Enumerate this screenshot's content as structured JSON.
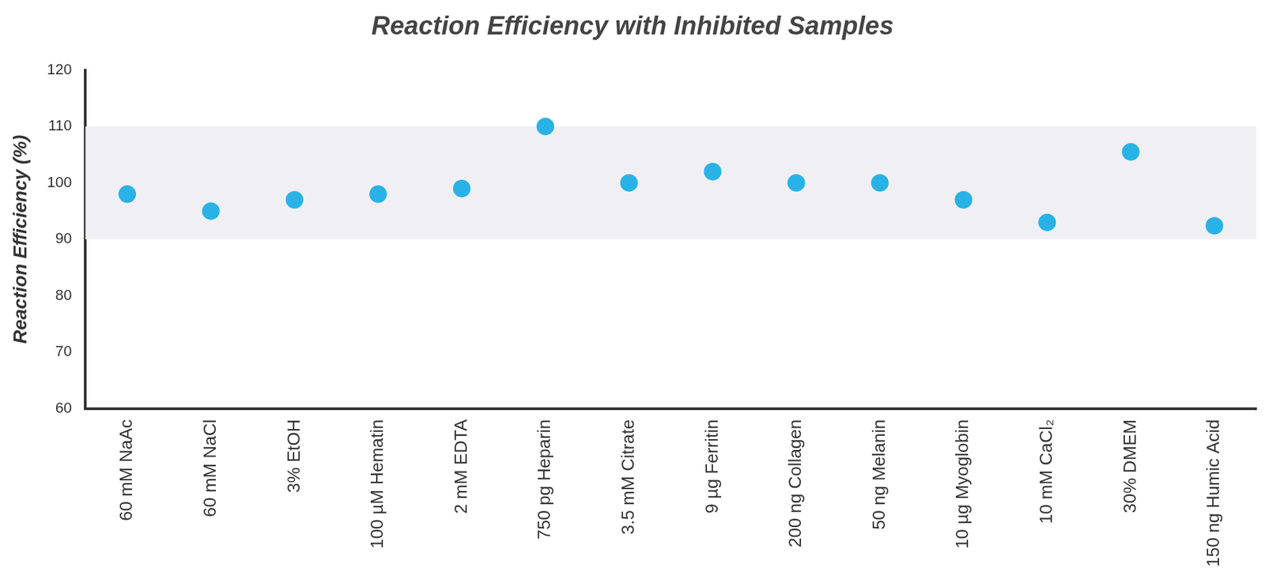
{
  "chart_data": {
    "type": "scatter",
    "title": "Reaction Efficiency with Inhibited Samples",
    "y_label": "Reaction Efficiency (%)",
    "categories": [
      "60 mM NaAc",
      "60 mM NaCl",
      "3% EtOH",
      "100 µM Hematin",
      "2 mM EDTA",
      "750 pg Heparin",
      "3.5 mM Citrate",
      "9 µg Ferritin",
      "200 ng Collagen",
      "50 ng Melanin",
      "10 µg Myoglobin",
      "10 mM CaCl₂",
      "30% DMEM",
      "150 ng Humic Acid"
    ],
    "values": [
      98,
      95,
      97,
      98,
      99,
      110,
      100,
      102,
      100,
      100,
      97,
      93,
      105.5,
      92.4
    ],
    "color": "#29b2e6",
    "band": [
      90,
      110
    ],
    "ylim": [
      60,
      120
    ],
    "yticks": [
      60,
      70,
      80,
      90,
      100,
      110,
      120
    ],
    "grid": false,
    "marker": "circle"
  }
}
